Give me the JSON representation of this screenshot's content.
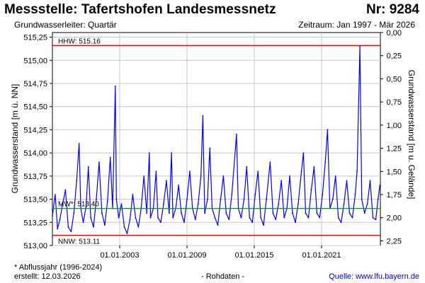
{
  "header": {
    "title": "Messstelle: Tafertshofen Landesmessnetz",
    "number": "Nr: 9284",
    "aquifer": "Grundwasserleiter: Quartär",
    "period": "Zeitraum: Jan 1997 - Mär 2026"
  },
  "footer": {
    "note": "* Abflussjahr (1996-2024)",
    "created": "erstellt:  12.03.2026",
    "rawdata": "- Rohdaten -",
    "source": "Quelle: www.lfu.bayern.de"
  },
  "colors": {
    "series": "#0000ff",
    "hhw": "#ff0000",
    "nnw": "#ff0000",
    "mw": "#00a000",
    "grid": "#c8c8c8"
  },
  "chart_data": {
    "type": "line",
    "title": "",
    "ylabel": "Grundwasserstand [m ü. NN]",
    "ylabel_right": "Grundwasserstand [m u. Gelände]",
    "xlabel": "",
    "ylim": [
      513.0,
      515.3
    ],
    "xlim": [
      "1997-01-01",
      "2026-03-31"
    ],
    "yticks": [
      "513,00",
      "513,25",
      "513,50",
      "513,75",
      "514,00",
      "514,25",
      "514,50",
      "514,75",
      "515,00",
      "515,25"
    ],
    "yticks_right": [
      "0,00",
      "0,25",
      "0,50",
      "0,75",
      "1,00",
      "1,25",
      "1,50",
      "1,75",
      "2,00",
      "2,25"
    ],
    "right_axis_zero_at": 515.3,
    "xticks": [
      {
        "date": "2003-01-01",
        "label": "01.01.2003"
      },
      {
        "date": "2009-01-01",
        "label": "01.01.2009"
      },
      {
        "date": "2015-01-01",
        "label": "01.01.2015"
      },
      {
        "date": "2021-01-01",
        "label": "01.01.2021"
      }
    ],
    "reference_lines": [
      {
        "name": "HHW",
        "label": "HHW: 515.16",
        "value": 515.16
      },
      {
        "name": "MW",
        "label": "MW*: 513.40",
        "value": 513.4
      },
      {
        "name": "NNW",
        "label": "NNW: 513.11",
        "value": 513.11
      }
    ],
    "series": [
      {
        "x": [
          "1997-01-01",
          "1997-04-01",
          "1997-06-15",
          "1997-09-01",
          "1997-12-01",
          "1998-03-01",
          "1998-06-01",
          "1998-09-01",
          "1998-12-01",
          "1999-03-01",
          "1999-05-20",
          "1999-07-15",
          "1999-10-01",
          "2000-01-01",
          "2000-03-15",
          "2000-06-01",
          "2000-09-01",
          "2000-12-01",
          "2001-03-01",
          "2001-06-01",
          "2001-09-01",
          "2001-12-01",
          "2002-03-01",
          "2002-05-15",
          "2002-08-12",
          "2002-09-15",
          "2002-12-01",
          "2003-03-01",
          "2003-06-01",
          "2003-09-01",
          "2003-12-01",
          "2004-03-01",
          "2004-06-01",
          "2004-09-01",
          "2004-12-01",
          "2005-03-01",
          "2005-06-01",
          "2005-08-23",
          "2005-10-01",
          "2006-01-01",
          "2006-04-01",
          "2006-06-01",
          "2006-09-01",
          "2006-12-01",
          "2007-03-01",
          "2007-06-01",
          "2007-08-15",
          "2007-10-01",
          "2008-01-01",
          "2008-04-01",
          "2008-07-01",
          "2008-10-01",
          "2009-01-01",
          "2009-04-01",
          "2009-07-01",
          "2009-10-01",
          "2010-01-01",
          "2010-04-01",
          "2010-06-01",
          "2010-08-01",
          "2010-11-01",
          "2011-01-15",
          "2011-04-01",
          "2011-07-01",
          "2011-10-01",
          "2012-01-01",
          "2012-04-01",
          "2012-07-01",
          "2012-10-01",
          "2013-01-01",
          "2013-06-02",
          "2013-08-01",
          "2013-11-01",
          "2014-02-01",
          "2014-05-01",
          "2014-08-01",
          "2014-11-01",
          "2015-02-01",
          "2015-05-01",
          "2015-08-01",
          "2015-11-01",
          "2016-02-01",
          "2016-06-01",
          "2016-09-01",
          "2016-12-01",
          "2017-03-01",
          "2017-06-01",
          "2017-09-01",
          "2017-12-01",
          "2018-03-01",
          "2018-06-01",
          "2018-09-01",
          "2018-12-01",
          "2019-03-15",
          "2019-05-22",
          "2019-08-01",
          "2019-11-01",
          "2020-02-01",
          "2020-05-01",
          "2020-08-01",
          "2020-11-01",
          "2021-02-01",
          "2021-05-01",
          "2021-07-15",
          "2021-10-01",
          "2022-01-01",
          "2022-04-01",
          "2022-07-01",
          "2022-10-01",
          "2023-01-01",
          "2023-04-01",
          "2023-07-01",
          "2023-10-01",
          "2024-01-01",
          "2024-03-01",
          "2024-06-03",
          "2024-08-01",
          "2024-11-01",
          "2025-02-01",
          "2025-05-01",
          "2025-08-01",
          "2025-11-01",
          "2026-01-15",
          "2026-03-15"
        ],
        "y": [
          513.32,
          513.55,
          513.18,
          513.28,
          513.45,
          513.6,
          513.2,
          513.15,
          513.35,
          513.7,
          514.1,
          513.4,
          513.25,
          513.42,
          513.85,
          513.3,
          513.2,
          513.5,
          513.9,
          513.35,
          513.22,
          513.48,
          513.95,
          513.4,
          514.72,
          513.5,
          513.3,
          513.45,
          513.2,
          513.13,
          513.28,
          513.55,
          513.3,
          513.2,
          513.4,
          513.75,
          513.35,
          514.0,
          513.3,
          513.4,
          513.8,
          513.3,
          513.25,
          513.45,
          513.7,
          513.35,
          514.0,
          513.3,
          513.4,
          513.65,
          513.35,
          513.25,
          513.5,
          513.8,
          513.4,
          513.28,
          513.45,
          513.75,
          514.4,
          513.35,
          513.5,
          514.05,
          513.4,
          513.3,
          513.22,
          513.5,
          513.75,
          513.35,
          513.28,
          513.55,
          514.2,
          513.4,
          513.3,
          513.5,
          513.85,
          513.3,
          513.25,
          513.55,
          513.8,
          513.3,
          513.22,
          513.5,
          513.9,
          513.35,
          513.28,
          513.45,
          513.7,
          513.3,
          513.4,
          513.75,
          513.35,
          513.25,
          513.45,
          513.8,
          514.0,
          513.35,
          513.3,
          513.6,
          513.85,
          513.35,
          513.3,
          513.55,
          513.9,
          514.25,
          513.4,
          513.5,
          513.75,
          513.3,
          513.25,
          513.45,
          513.7,
          513.35,
          513.3,
          513.55,
          513.8,
          515.15,
          513.5,
          513.35,
          513.45,
          513.7,
          513.3,
          513.28,
          513.5,
          513.65
        ]
      }
    ]
  }
}
